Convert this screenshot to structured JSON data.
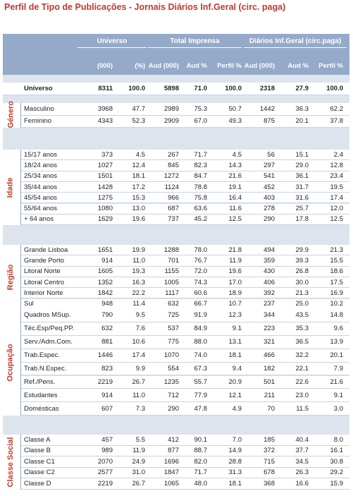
{
  "title": "Perfil de Tipo de Publicações  - Jornais Diários Inf.Geral (circ. paga)",
  "header": {
    "groups": [
      "Universo",
      "Total Imprensa",
      "Diários Inf.Geral (circ.paga)"
    ],
    "columns": [
      "(000)",
      "(%)",
      "Aud (000)",
      "Aud %",
      "Perfil %",
      "Aud (000)",
      "Aud %",
      "Perfil %"
    ]
  },
  "universe": {
    "label": "Universo",
    "cells": [
      "8311",
      "100.0",
      "5898",
      "71.0",
      "100.0",
      "2318",
      "27.9",
      "100.0"
    ]
  },
  "sections": [
    {
      "label": "Género",
      "rows": [
        {
          "label": "Masculino",
          "cells": [
            "3968",
            "47.7",
            "2989",
            "75.3",
            "50.7",
            "1442",
            "36.3",
            "62.2"
          ]
        },
        {
          "label": "Feminino",
          "cells": [
            "4343",
            "52.3",
            "2909",
            "67.0",
            "49.3",
            "875",
            "20.1",
            "37.8"
          ]
        }
      ]
    },
    {
      "label": "Idade",
      "rows": [
        {
          "label": "15/17 anos",
          "cells": [
            "373",
            "4.5",
            "267",
            "71.7",
            "4.5",
            "56",
            "15.1",
            "2.4"
          ]
        },
        {
          "label": "18/24 anos",
          "cells": [
            "1027",
            "12.4",
            "845",
            "82.3",
            "14.3",
            "297",
            "29.0",
            "12.8"
          ]
        },
        {
          "label": "25/34 anos",
          "cells": [
            "1501",
            "18.1",
            "1272",
            "84.7",
            "21.6",
            "541",
            "36.1",
            "23.4"
          ]
        },
        {
          "label": "35/44 anos",
          "cells": [
            "1428",
            "17.2",
            "1124",
            "78.8",
            "19.1",
            "452",
            "31.7",
            "19.5"
          ]
        },
        {
          "label": "45/54 anos",
          "cells": [
            "1275",
            "15.3",
            "966",
            "75.8",
            "16.4",
            "403",
            "31.6",
            "17.4"
          ]
        },
        {
          "label": "55/64 anos",
          "cells": [
            "1080",
            "13.0",
            "687",
            "63.6",
            "11.6",
            "278",
            "25.7",
            "12.0"
          ]
        },
        {
          "label": "+ 64 anos",
          "cells": [
            "1629",
            "19.6",
            "737",
            "45.2",
            "12.5",
            "290",
            "17.8",
            "12.5"
          ]
        }
      ]
    },
    {
      "label": "Região",
      "rows": [
        {
          "label": "Grande Lisboa",
          "cells": [
            "1651",
            "19.9",
            "1288",
            "78.0",
            "21.8",
            "494",
            "29.9",
            "21.3"
          ]
        },
        {
          "label": "Grande Porto",
          "cells": [
            "914",
            "11.0",
            "701",
            "76.7",
            "11.9",
            "359",
            "39.3",
            "15.5"
          ]
        },
        {
          "label": "Litoral Norte",
          "cells": [
            "1605",
            "19.3",
            "1155",
            "72.0",
            "19.6",
            "430",
            "26.8",
            "18.6"
          ]
        },
        {
          "label": "Litoral Centro",
          "cells": [
            "1352",
            "16.3",
            "1005",
            "74.3",
            "17.0",
            "406",
            "30.0",
            "17.5"
          ]
        },
        {
          "label": "Interior Norte",
          "cells": [
            "1842",
            "22.2",
            "1117",
            "60.6",
            "18.9",
            "392",
            "21.3",
            "16.9"
          ]
        },
        {
          "label": "Sul",
          "cells": [
            "948",
            "11.4",
            "632",
            "66.7",
            "10.7",
            "237",
            "25.0",
            "10.2"
          ]
        }
      ]
    },
    {
      "label": "Ocupação",
      "rows": [
        {
          "label": "Quadros MSup.",
          "cells": [
            "790",
            "9.5",
            "725",
            "91.9",
            "12.3",
            "344",
            "43.5",
            "14.8"
          ]
        },
        {
          "label": "Téc.Esp/Peq.PP.",
          "cells": [
            "632",
            "7.6",
            "537",
            "84.9",
            "9.1",
            "223",
            "35.3",
            "9.6"
          ]
        },
        {
          "label": "Serv./Adm.Com.",
          "cells": [
            "881",
            "10.6",
            "775",
            "88.0",
            "13.1",
            "321",
            "36.5",
            "13.9"
          ]
        },
        {
          "label": "Trab.Espec.",
          "cells": [
            "1446",
            "17.4",
            "1070",
            "74.0",
            "18.1",
            "466",
            "32.2",
            "20.1"
          ]
        },
        {
          "label": "Trab.N.Espec.",
          "cells": [
            "823",
            "9.9",
            "554",
            "67.3",
            "9.4",
            "182",
            "22.1",
            "7.9"
          ]
        },
        {
          "label": "Ref./Pens.",
          "cells": [
            "2219",
            "26.7",
            "1235",
            "55.7",
            "20.9",
            "501",
            "22.6",
            "21.6"
          ]
        },
        {
          "label": "Estudantes",
          "cells": [
            "914",
            "11.0",
            "712",
            "77.9",
            "12.1",
            "211",
            "23.0",
            "9.1"
          ]
        },
        {
          "label": "Domésticas",
          "cells": [
            "607",
            "7.3",
            "290",
            "47.8",
            "4.9",
            "70",
            "11.5",
            "3.0"
          ]
        }
      ]
    },
    {
      "label": "Classe Social",
      "rows": [
        {
          "label": "Classe A",
          "cells": [
            "457",
            "5.5",
            "412",
            "90.1",
            "7.0",
            "185",
            "40.4",
            "8.0"
          ]
        },
        {
          "label": "Classe B",
          "cells": [
            "989",
            "11.9",
            "877",
            "88.7",
            "14.9",
            "372",
            "37.7",
            "16.1"
          ]
        },
        {
          "label": "Classe C1",
          "cells": [
            "2070",
            "24.9",
            "1696",
            "82.0",
            "28.8",
            "715",
            "34.5",
            "30.8"
          ]
        },
        {
          "label": "Classe C2",
          "cells": [
            "2577",
            "31.0",
            "1847",
            "71.7",
            "31.3",
            "678",
            "26.3",
            "29.2"
          ]
        },
        {
          "label": "Classe D",
          "cells": [
            "2219",
            "26.7",
            "1065",
            "48.0",
            "18.1",
            "368",
            "16.6",
            "15.9"
          ]
        }
      ]
    }
  ]
}
